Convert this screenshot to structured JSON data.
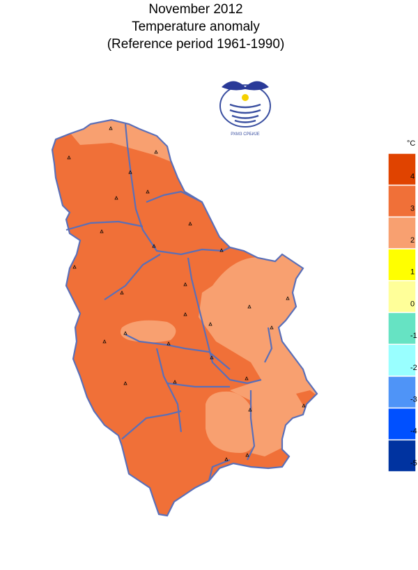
{
  "title": [
    "November 2012",
    "Temperature anomaly",
    "(Reference period 1961-1990)"
  ],
  "logo": {
    "text": "РХМЗ СРБИЈЕ"
  },
  "legend": {
    "unit": "°C",
    "ticks": [
      4,
      3,
      2,
      1,
      0,
      -1,
      -2,
      -3,
      -4,
      -5
    ],
    "colors": [
      "#e04300",
      "#f07038",
      "#f8a070",
      "#ffff00",
      "#ffff99",
      "#66e3c3",
      "#99ffff",
      "#4f94f7",
      "#0050ff",
      "#0033a0"
    ]
  }
}
